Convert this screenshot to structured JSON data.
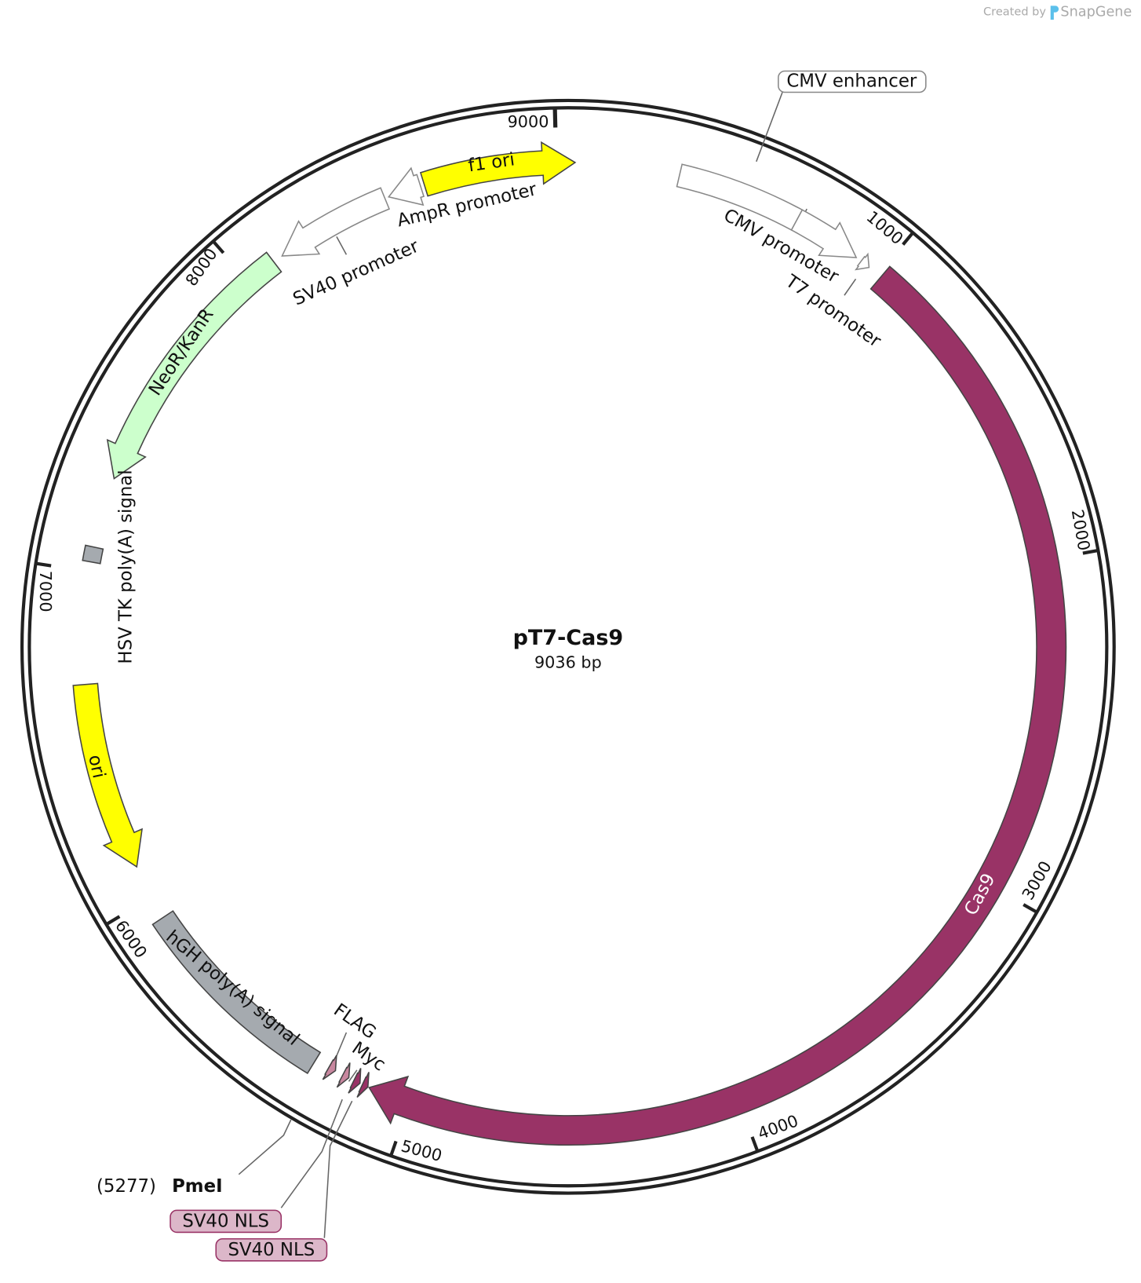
{
  "header": {
    "created_by": "Created by",
    "brand": "SnapGene"
  },
  "map": {
    "name": "pT7-Cas9",
    "length": "9036 bp",
    "ticks": [
      "1000",
      "2000",
      "3000",
      "4000",
      "5000",
      "6000",
      "7000",
      "8000",
      "9000"
    ],
    "features": [
      {
        "label": "CMV enhancer"
      },
      {
        "label": "CMV promoter"
      },
      {
        "label": "T7 promoter"
      },
      {
        "label": "Cas9"
      },
      {
        "label": "Myc"
      },
      {
        "label": "FLAG"
      },
      {
        "label": "hGH poly(A) signal"
      },
      {
        "label": "ori"
      },
      {
        "label": "HSV TK poly(A) signal"
      },
      {
        "label": "NeoR/KanR"
      },
      {
        "label": "SV40 promoter"
      },
      {
        "label": "AmpR promoter"
      },
      {
        "label": "f1 ori"
      },
      {
        "label": "SV40 NLS"
      },
      {
        "label": "SV40 NLS"
      }
    ],
    "site": {
      "position": "(5277)",
      "enzyme": "PmeI"
    }
  }
}
